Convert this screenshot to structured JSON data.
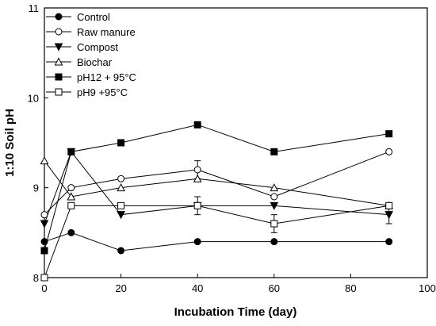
{
  "chart_data": {
    "type": "line",
    "title": "",
    "xlabel": "Incubation Time (day)",
    "ylabel": "1:10 Soil pH",
    "xlim": [
      0,
      100
    ],
    "ylim": [
      8,
      11
    ],
    "xticks": [
      0,
      20,
      40,
      60,
      80,
      100
    ],
    "yticks": [
      8,
      9,
      10,
      11
    ],
    "grid": false,
    "legend_position": "top-left",
    "series": [
      {
        "name": "Control",
        "marker": "filled-circle",
        "x": [
          0,
          7,
          20,
          40,
          60,
          90
        ],
        "y": [
          8.4,
          8.5,
          8.3,
          8.4,
          8.4,
          8.4
        ],
        "err": [
          0,
          0,
          0,
          0,
          0,
          0
        ]
      },
      {
        "name": "Raw manure",
        "marker": "open-circle",
        "x": [
          0,
          7,
          20,
          40,
          60,
          90
        ],
        "y": [
          8.7,
          9.0,
          9.1,
          9.2,
          8.9,
          9.4
        ],
        "err": [
          0,
          0,
          0,
          0.1,
          0,
          0
        ]
      },
      {
        "name": "Compost",
        "marker": "filled-triangle-down",
        "x": [
          0,
          7,
          20,
          40,
          60,
          90
        ],
        "y": [
          8.6,
          9.4,
          8.7,
          8.8,
          8.8,
          8.7
        ],
        "err": [
          0,
          0,
          0,
          0,
          0,
          0.1
        ]
      },
      {
        "name": "Biochar",
        "marker": "open-triangle-up",
        "x": [
          0,
          7,
          20,
          40,
          60,
          90
        ],
        "y": [
          9.3,
          8.9,
          9.0,
          9.1,
          9.0,
          8.8
        ],
        "err": [
          0,
          0,
          0,
          0,
          0,
          0
        ]
      },
      {
        "name": "pH12 + 95°C",
        "marker": "filled-square",
        "x": [
          0,
          7,
          20,
          40,
          60,
          90
        ],
        "y": [
          8.3,
          9.4,
          9.5,
          9.7,
          9.4,
          9.6
        ],
        "err": [
          0,
          0,
          0,
          0,
          0,
          0
        ]
      },
      {
        "name": "pH9 +95°C",
        "marker": "open-square",
        "x": [
          0,
          7,
          20,
          40,
          60,
          90
        ],
        "y": [
          8.0,
          8.8,
          8.8,
          8.8,
          8.6,
          8.8
        ],
        "err": [
          0,
          0,
          0,
          0.1,
          0.1,
          0
        ]
      }
    ]
  }
}
